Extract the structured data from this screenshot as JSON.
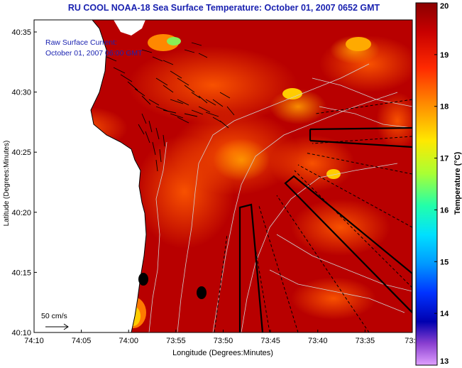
{
  "title": "RU COOL  NOAA-18  Sea Surface Temperature:  October 01, 2007 0652 GMT",
  "legend_box": {
    "line1": "Raw Surface Current:",
    "line2": "October 01, 2007 06:00 GMT"
  },
  "scale_label": "50 cm/s",
  "axes": {
    "xlabel": "Longitude (Degrees:Minutes)",
    "ylabel": "Latitude (Degrees:Minutes)",
    "x_ticks": [
      "74:10",
      "74:05",
      "74:00",
      "73:55",
      "73:50",
      "73:45",
      "73:40",
      "73:35",
      "73:3"
    ],
    "y_ticks": [
      "40:35",
      "40:30",
      "40:25",
      "40:20",
      "40:15",
      "40:10"
    ]
  },
  "colorbar": {
    "label": "Temperature (°C)",
    "ticks": [
      "20",
      "19",
      "18",
      "17",
      "16",
      "15",
      "14",
      "13"
    ],
    "min": 13,
    "max": 20
  },
  "colors": {
    "title": "#1a22b0",
    "sst_base": "#b80000",
    "land": "#ffffff"
  }
}
